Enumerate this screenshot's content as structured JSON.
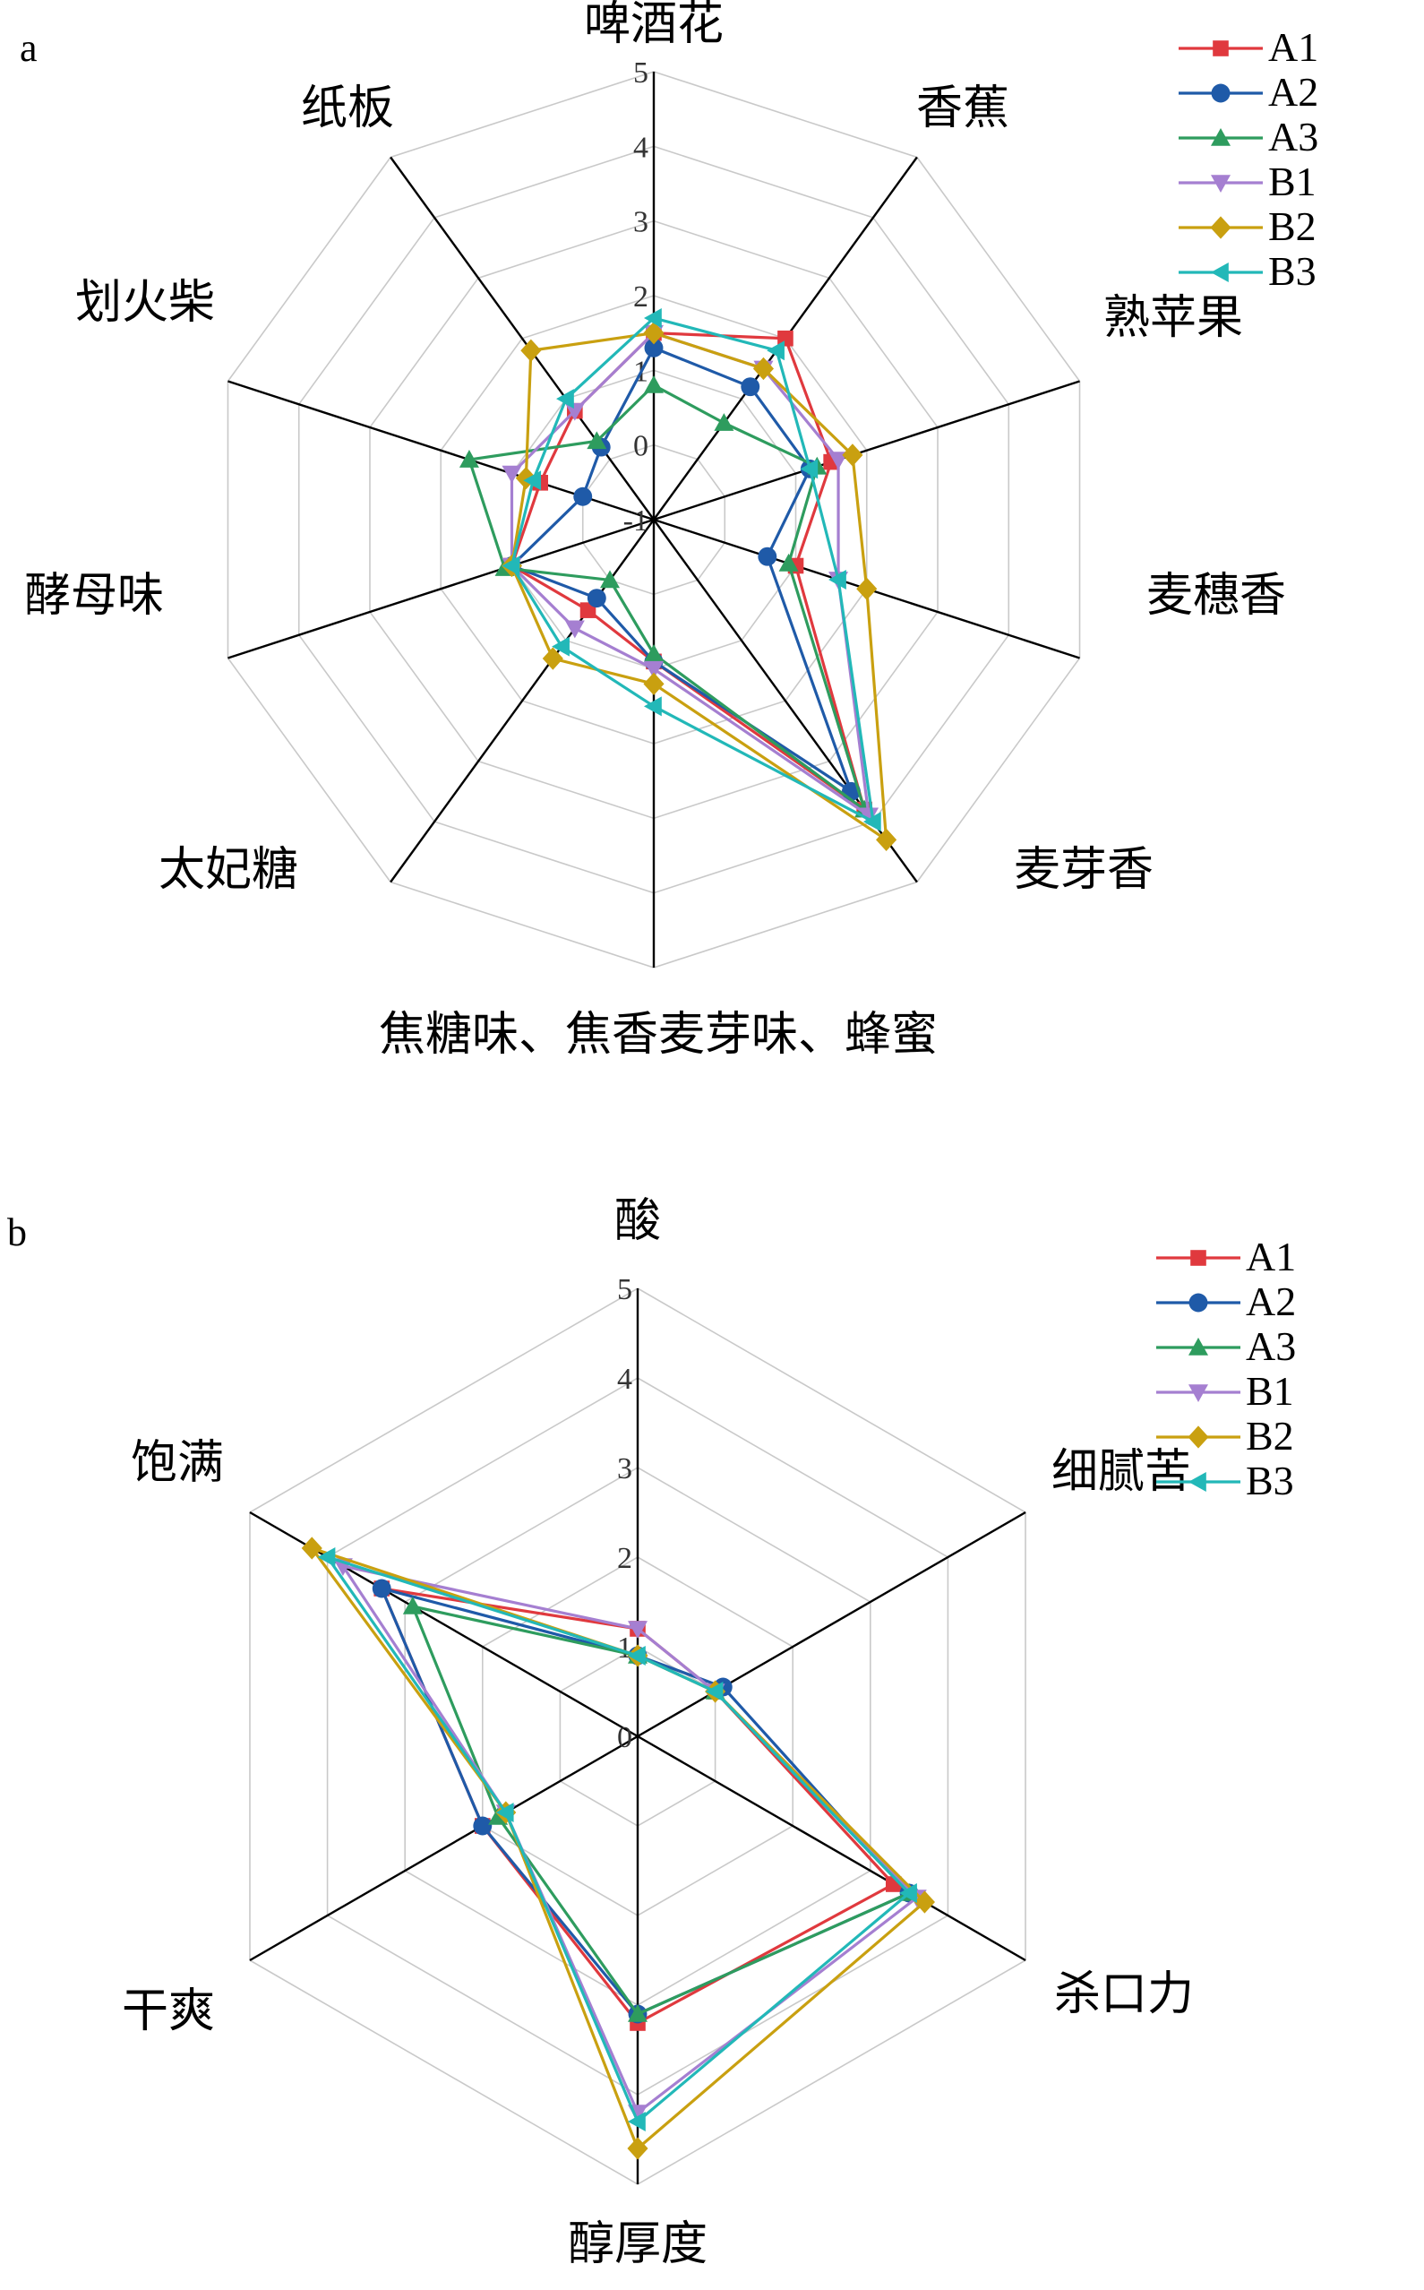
{
  "chart_data": [
    {
      "panel_label": "a",
      "type": "radar",
      "axes": [
        "啤酒花",
        "香蕉",
        "熟苹果",
        "麦穗香",
        "麦芽香",
        "焦糖味、焦香麦芽味、蜂蜜",
        "太妃糖",
        "酵母味",
        "划火柴",
        "纸板"
      ],
      "rlim": [
        -1,
        5
      ],
      "ticks": [
        -1,
        0,
        1,
        2,
        3,
        4,
        5
      ],
      "tick_labels": [
        "-1",
        "0",
        "1",
        "2",
        "3",
        "4",
        "5"
      ],
      "grid": true,
      "legend_position": "top-right",
      "series": [
        {
          "name": "A1",
          "color": "#e0393e",
          "marker": "square",
          "values": [
            1.5,
            2.0,
            1.5,
            1.0,
            3.8,
            0.9,
            0.5,
            1.0,
            0.6,
            0.8
          ]
        },
        {
          "name": "A2",
          "color": "#1f5aa8",
          "marker": "circle",
          "values": [
            1.3,
            1.2,
            1.2,
            0.6,
            3.5,
            0.9,
            0.3,
            1.0,
            0.0,
            0.2
          ]
        },
        {
          "name": "A3",
          "color": "#2e9c5e",
          "marker": "triangle-up",
          "values": [
            0.8,
            0.6,
            1.3,
            0.9,
            3.8,
            0.8,
            0.0,
            1.1,
            1.6,
            0.3
          ]
        },
        {
          "name": "B1",
          "color": "#a57fd1",
          "marker": "triangle-down",
          "values": [
            1.5,
            1.5,
            1.6,
            1.6,
            3.9,
            1.0,
            0.8,
            1.0,
            1.0,
            0.8
          ]
        },
        {
          "name": "B2",
          "color": "#c9a010",
          "marker": "diamond",
          "values": [
            1.5,
            1.5,
            1.8,
            2.0,
            4.3,
            1.2,
            1.3,
            1.0,
            0.8,
            1.8
          ]
        },
        {
          "name": "B3",
          "color": "#22b8b8",
          "marker": "triangle-left",
          "values": [
            1.7,
            1.8,
            1.2,
            1.6,
            4.0,
            1.5,
            1.1,
            1.0,
            0.7,
            1.0
          ]
        }
      ]
    },
    {
      "panel_label": "b",
      "type": "radar",
      "axes": [
        "酸",
        "细腻苦",
        "杀口力",
        "醇厚度",
        "干爽",
        "饱满"
      ],
      "rlim": [
        0,
        5
      ],
      "ticks": [
        0,
        1,
        2,
        3,
        4,
        5
      ],
      "tick_labels": [
        "0",
        "1",
        "2",
        "3",
        "4",
        "5"
      ],
      "grid": true,
      "legend_position": "top-right",
      "series": [
        {
          "name": "A1",
          "color": "#e0393e",
          "marker": "square",
          "values": [
            1.2,
            1.0,
            3.3,
            3.2,
            2.0,
            3.3
          ]
        },
        {
          "name": "A2",
          "color": "#1f5aa8",
          "marker": "circle",
          "values": [
            0.9,
            1.1,
            3.5,
            3.1,
            2.0,
            3.3
          ]
        },
        {
          "name": "A3",
          "color": "#2e9c5e",
          "marker": "triangle-up",
          "values": [
            0.9,
            1.0,
            3.5,
            3.1,
            1.8,
            2.9
          ]
        },
        {
          "name": "B1",
          "color": "#a57fd1",
          "marker": "triangle-down",
          "values": [
            1.2,
            1.0,
            3.6,
            4.2,
            1.7,
            3.8
          ]
        },
        {
          "name": "B2",
          "color": "#c9a010",
          "marker": "diamond",
          "values": [
            0.9,
            1.0,
            3.7,
            4.6,
            1.7,
            4.2
          ]
        },
        {
          "name": "B3",
          "color": "#22b8b8",
          "marker": "triangle-left",
          "values": [
            0.9,
            1.0,
            3.5,
            4.3,
            1.7,
            4.0
          ]
        }
      ]
    }
  ]
}
